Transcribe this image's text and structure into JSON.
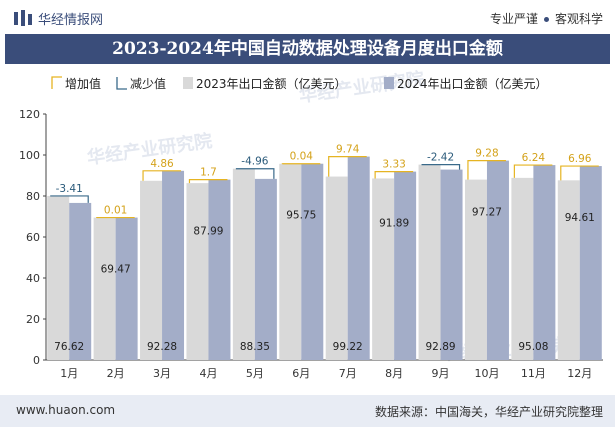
{
  "header": {
    "brand": "华经情报网",
    "slogan_left": "专业严谨",
    "slogan_right": "客观科学"
  },
  "colors": {
    "brand": "#3a4d7a",
    "increase": "#e6b422",
    "decrease": "#3a6a8a",
    "bar2023": "#d9d9d9",
    "bar2024": "#a3adc8"
  },
  "footer": {
    "url": "www.huaon.com",
    "source": "数据来源：中国海关，华经产业研究院整理"
  },
  "watermark": "华经产业研究院",
  "chart_data": {
    "type": "bar",
    "title": "2023-2024年中国自动数据处理设备月度出口金额",
    "categories": [
      "1月",
      "2月",
      "3月",
      "4月",
      "5月",
      "6月",
      "7月",
      "8月",
      "9月",
      "10月",
      "11月",
      "12月"
    ],
    "series": [
      {
        "name": "2023年出口金额（亿美元）",
        "values": [
          80.03,
          69.46,
          87.42,
          86.29,
          93.31,
          95.71,
          89.48,
          88.56,
          95.31,
          87.99,
          88.84,
          87.65
        ]
      },
      {
        "name": "2024年出口金额（亿美元）",
        "values": [
          76.62,
          69.47,
          92.28,
          87.99,
          88.35,
          95.75,
          99.22,
          91.89,
          92.89,
          97.27,
          95.08,
          94.61
        ]
      }
    ],
    "differences": [
      -3.41,
      0.01,
      4.86,
      1.7,
      -4.96,
      0.04,
      9.74,
      3.33,
      -2.42,
      9.28,
      6.24,
      6.96
    ],
    "difference_labels": [
      "-3.41",
      "0.01",
      "4.86",
      "1.7",
      "-4.96",
      "0.04",
      "9.74",
      "3.33",
      "-2.42",
      "9.28",
      "6.24",
      "6.96"
    ],
    "legend": [
      "增加值",
      "减少值",
      "2023年出口金额（亿美元）",
      "2024年出口金额（亿美元）"
    ],
    "ylim": [
      0,
      120
    ],
    "yticks": [
      0,
      20,
      40,
      60,
      80,
      100,
      120
    ],
    "grid": false,
    "legend_position": "top"
  }
}
